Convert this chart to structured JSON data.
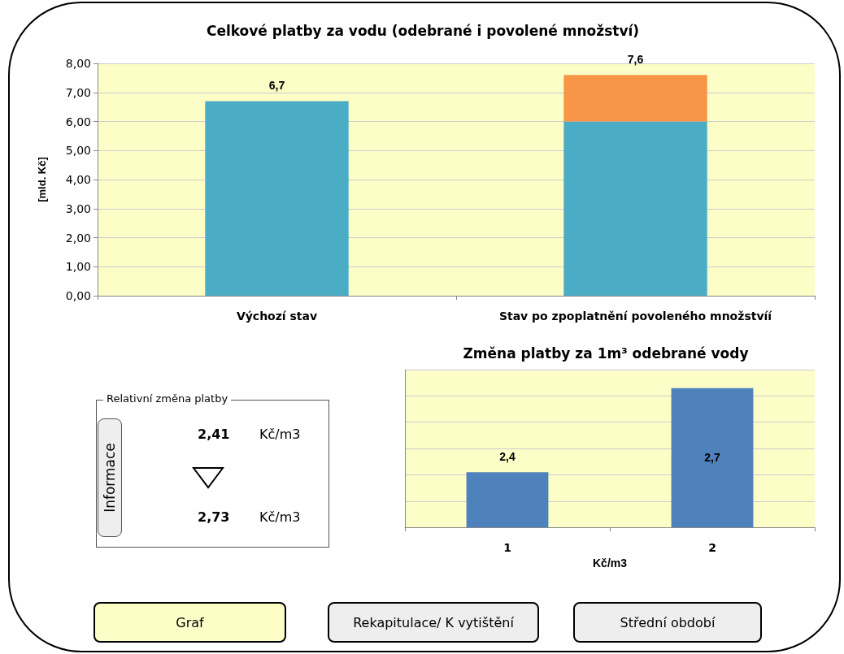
{
  "chart_data": [
    {
      "type": "bar",
      "title": "Celkové platby za vodu (odebrané i povolené množství)",
      "ylabel": "[mld. Kč]",
      "categories": [
        "Výchozí stav",
        "Stav po zpoplatnění povoleného množstvíí"
      ],
      "stacked": true,
      "series": [
        {
          "color": "#4bacc6",
          "values": [
            6.7,
            6.0
          ]
        },
        {
          "color": "#f79646",
          "values": [
            null,
            1.6
          ]
        }
      ],
      "totals": [
        "6,7",
        "7,6"
      ],
      "ylim": [
        0,
        8
      ],
      "yticks": [
        {
          "value": 0,
          "label": "0,00"
        },
        {
          "value": 1,
          "label": "1,00"
        },
        {
          "value": 2,
          "label": "2,00"
        },
        {
          "value": 3,
          "label": "3,00"
        },
        {
          "value": 4,
          "label": "4,00"
        },
        {
          "value": 5,
          "label": "5,00"
        },
        {
          "value": 6,
          "label": "6,00"
        },
        {
          "value": 7,
          "label": "7,00"
        },
        {
          "value": 8,
          "label": "8,00"
        }
      ],
      "grid": "y"
    },
    {
      "type": "other",
      "title": "Relativní změna platby",
      "annotations": [
        "Informace",
        "2,41",
        "Kč/m3",
        "2,73",
        "Kč/m3"
      ]
    },
    {
      "type": "bar",
      "title": "Změna platby za 1m³ odebrané vody",
      "xlabel": "Kč/m3",
      "categories": [
        "1",
        "2"
      ],
      "values": [
        2.41,
        2.73
      ],
      "value_labels": [
        "2,4",
        "2,7"
      ],
      "color": "#4f81bd",
      "ylim": [
        2.2,
        2.8
      ],
      "yticks": [
        2.2,
        2.3,
        2.4,
        2.5,
        2.6,
        2.7,
        2.8
      ],
      "grid": "y",
      "tick_labels": "x"
    },
    {
      "type": "other",
      "annotations": [
        "Graf",
        "Rekapitulace/ K vytištění",
        "Střední období"
      ]
    }
  ]
}
